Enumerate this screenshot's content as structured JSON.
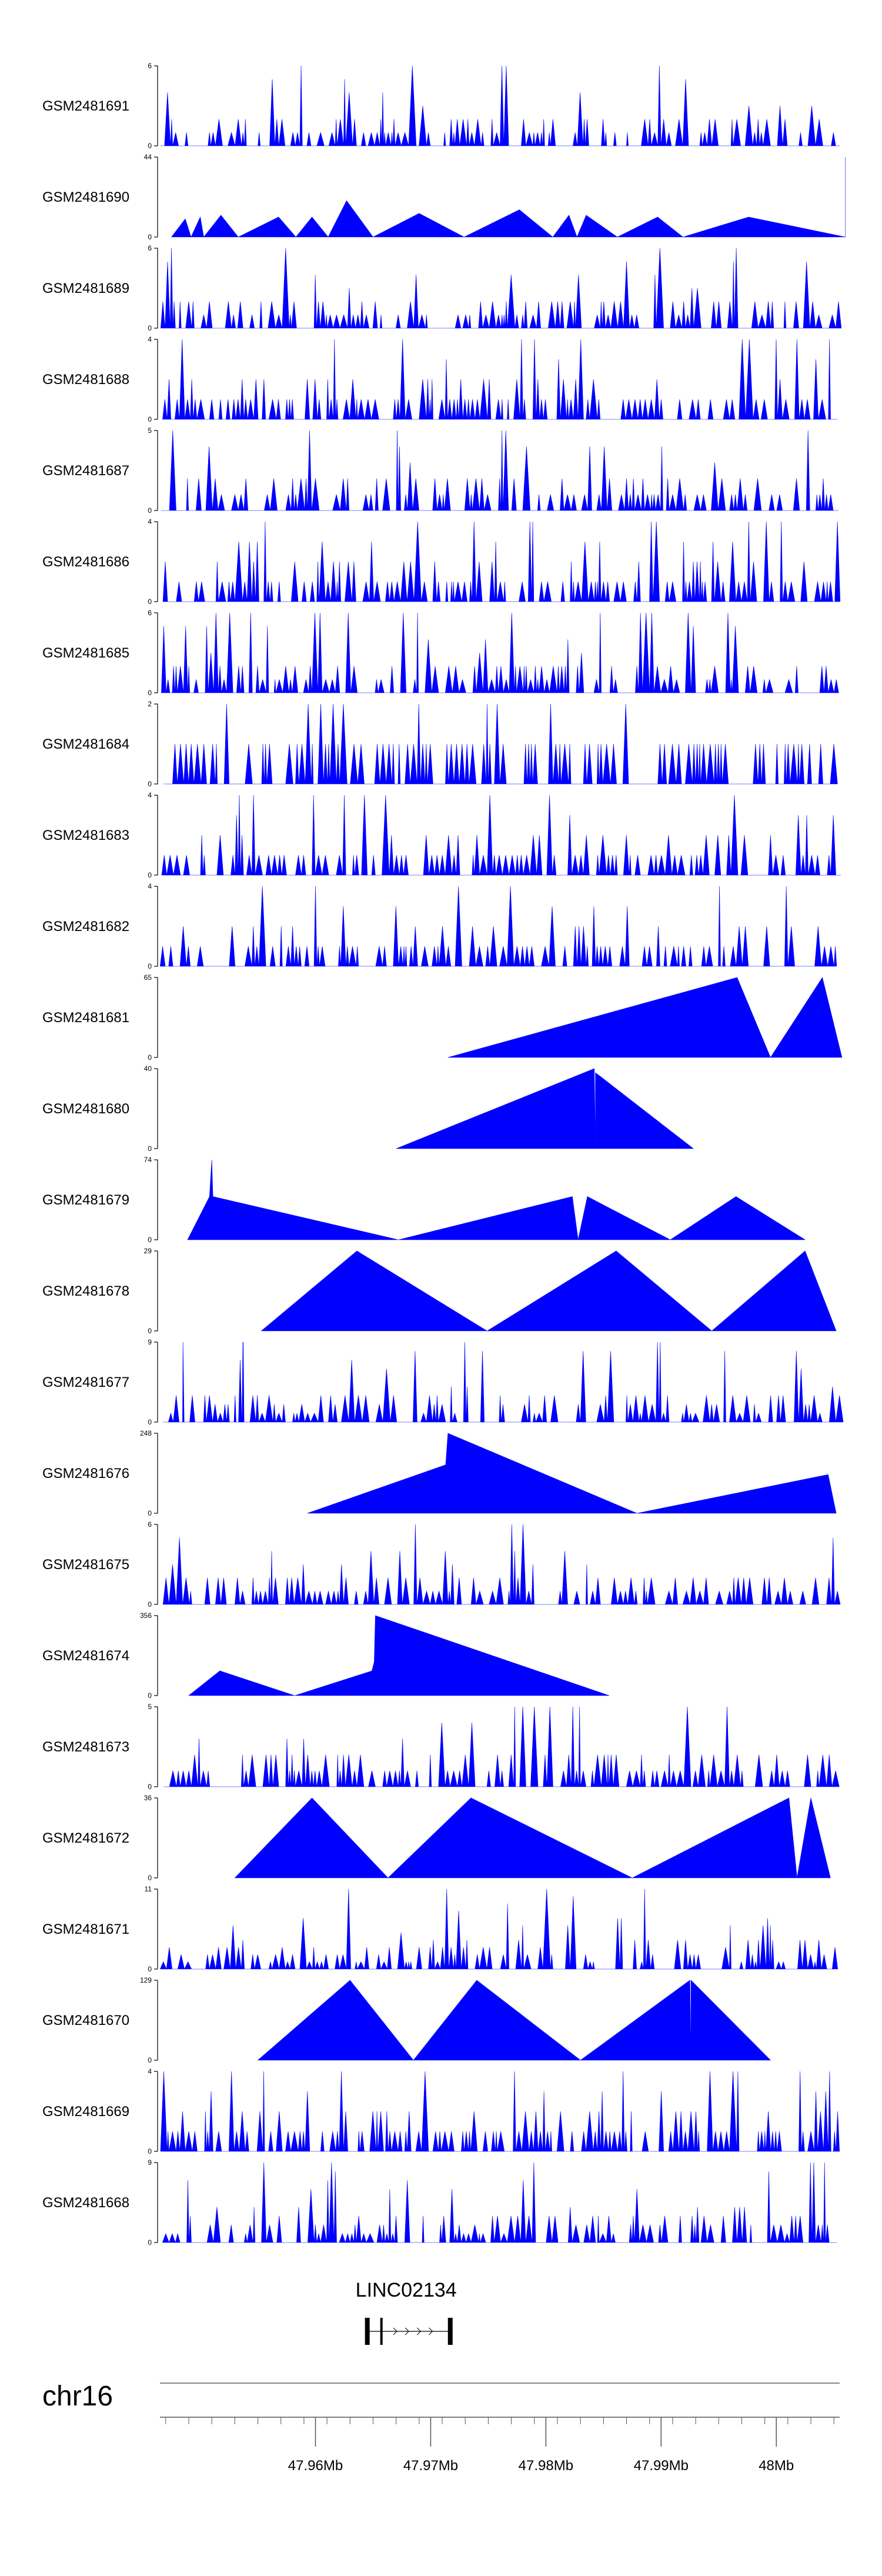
{
  "chart_data": {
    "type": "area",
    "title": "",
    "region": {
      "chromosome": "chr16",
      "start_mb": 47.9465,
      "end_mb": 48.0055
    },
    "color": "#0000ff",
    "tracks": [
      {
        "sample": "GSM2481691",
        "ymax": 6,
        "pattern": "dense",
        "seed": 91,
        "peaks": []
      },
      {
        "sample": "GSM2481690",
        "ymax": 44,
        "pattern": "sparse",
        "seed": 90,
        "peaks": [
          [
            47.9475,
            0
          ],
          [
            47.9487,
            10
          ],
          [
            47.9492,
            0
          ],
          [
            47.95,
            11
          ],
          [
            47.9503,
            0
          ],
          [
            47.9518,
            12
          ],
          [
            47.9533,
            0
          ],
          [
            47.9568,
            11
          ],
          [
            47.9583,
            0
          ],
          [
            47.9597,
            11
          ],
          [
            47.9611,
            0
          ],
          [
            47.9627,
            20
          ],
          [
            47.965,
            0
          ],
          [
            47.969,
            13
          ],
          [
            47.9729,
            0
          ],
          [
            47.9777,
            15
          ],
          [
            47.9806,
            0
          ],
          [
            47.982,
            12
          ],
          [
            47.9827,
            0
          ],
          [
            47.9835,
            12
          ],
          [
            47.9862,
            0
          ],
          [
            47.9897,
            11
          ],
          [
            47.9919,
            0
          ],
          [
            47.9976,
            11
          ],
          [
            48.006,
            0
          ],
          [
            48.006,
            44
          ]
        ]
      },
      {
        "sample": "GSM2481689",
        "ymax": 6,
        "pattern": "dense",
        "seed": 89,
        "peaks": []
      },
      {
        "sample": "GSM2481688",
        "ymax": 4,
        "pattern": "dense",
        "seed": 88,
        "peaks": []
      },
      {
        "sample": "GSM2481687",
        "ymax": 5,
        "pattern": "dense",
        "seed": 87,
        "peaks": []
      },
      {
        "sample": "GSM2481686",
        "ymax": 4,
        "pattern": "dense",
        "seed": 86,
        "peaks": []
      },
      {
        "sample": "GSM2481685",
        "ymax": 6,
        "pattern": "dense",
        "seed": 85,
        "peaks": []
      },
      {
        "sample": "GSM2481684",
        "ymax": 2,
        "pattern": "dense",
        "seed": 84,
        "peaks": []
      },
      {
        "sample": "GSM2481683",
        "ymax": 4,
        "pattern": "dense",
        "seed": 83,
        "peaks": []
      },
      {
        "sample": "GSM2481682",
        "ymax": 4,
        "pattern": "dense",
        "seed": 82,
        "peaks": []
      },
      {
        "sample": "GSM2481681",
        "ymax": 65,
        "pattern": "sparse",
        "seed": 81,
        "peaks": [
          [
            47.9715,
            0
          ],
          [
            47.9966,
            65
          ],
          [
            47.9995,
            0
          ],
          [
            48.004,
            65
          ],
          [
            48.0057,
            0
          ]
        ]
      },
      {
        "sample": "GSM2481680",
        "ymax": 40,
        "pattern": "sparse",
        "seed": 80,
        "peaks": [
          [
            47.967,
            0
          ],
          [
            47.9842,
            40
          ],
          [
            47.9843,
            0
          ],
          [
            47.9843,
            38
          ],
          [
            47.9928,
            0
          ]
        ]
      },
      {
        "sample": "GSM2481679",
        "ymax": 74,
        "pattern": "sparse",
        "seed": 79,
        "peaks": [
          [
            47.9489,
            0
          ],
          [
            47.9508,
            40
          ],
          [
            47.951,
            74
          ],
          [
            47.9511,
            40
          ],
          [
            47.9672,
            0
          ],
          [
            47.9823,
            40
          ],
          [
            47.9828,
            0
          ],
          [
            47.9836,
            40
          ],
          [
            47.9908,
            0
          ],
          [
            47.9965,
            40
          ],
          [
            48.0025,
            0
          ]
        ]
      },
      {
        "sample": "GSM2481678",
        "ymax": 29,
        "pattern": "sparse",
        "seed": 78,
        "peaks": [
          [
            47.9553,
            0
          ],
          [
            47.9636,
            29
          ],
          [
            47.9749,
            0
          ],
          [
            47.9861,
            29
          ],
          [
            47.9944,
            0
          ],
          [
            48.0025,
            29
          ],
          [
            48.0052,
            0
          ]
        ]
      },
      {
        "sample": "GSM2481677",
        "ymax": 9,
        "pattern": "dense",
        "seed": 77,
        "peaks": [
          [
            47.9485,
            9
          ],
          [
            47.9537,
            9
          ]
        ]
      },
      {
        "sample": "GSM2481676",
        "ymax": 248,
        "pattern": "sparse",
        "seed": 76,
        "peaks": [
          [
            47.9593,
            0
          ],
          [
            47.9713,
            150
          ],
          [
            47.9715,
            248
          ],
          [
            47.9879,
            0
          ],
          [
            48.0045,
            120
          ],
          [
            48.0052,
            0
          ]
        ]
      },
      {
        "sample": "GSM2481675",
        "ymax": 6,
        "pattern": "dense",
        "seed": 75,
        "peaks": []
      },
      {
        "sample": "GSM2481674",
        "ymax": 356,
        "pattern": "sparse",
        "seed": 74,
        "peaks": [
          [
            47.949,
            0
          ],
          [
            47.9517,
            110
          ],
          [
            47.9582,
            0
          ],
          [
            47.9649,
            110
          ],
          [
            47.9651,
            150
          ],
          [
            47.9652,
            356
          ],
          [
            47.9855,
            0
          ]
        ]
      },
      {
        "sample": "GSM2481673",
        "ymax": 5,
        "pattern": "dense",
        "seed": 73,
        "peaks": []
      },
      {
        "sample": "GSM2481672",
        "ymax": 36,
        "pattern": "sparse",
        "seed": 72,
        "peaks": [
          [
            47.953,
            0
          ],
          [
            47.9597,
            36
          ],
          [
            47.9663,
            0
          ],
          [
            47.9735,
            36
          ],
          [
            47.9875,
            0
          ],
          [
            48.0011,
            36
          ],
          [
            48.0018,
            0
          ],
          [
            48.003,
            36
          ],
          [
            48.0047,
            0
          ]
        ]
      },
      {
        "sample": "GSM2481671",
        "ymax": 11,
        "pattern": "dense",
        "seed": 71,
        "peaks": []
      },
      {
        "sample": "GSM2481670",
        "ymax": 129,
        "pattern": "sparse",
        "seed": 70,
        "peaks": [
          [
            47.955,
            0
          ],
          [
            47.963,
            129
          ],
          [
            47.9685,
            0
          ],
          [
            47.974,
            129
          ],
          [
            47.983,
            0
          ],
          [
            47.9925,
            129
          ],
          [
            47.9926,
            0
          ],
          [
            47.9926,
            129
          ],
          [
            47.9995,
            0
          ]
        ]
      },
      {
        "sample": "GSM2481669",
        "ymax": 4,
        "pattern": "dense",
        "seed": 69,
        "peaks": []
      },
      {
        "sample": "GSM2481668",
        "ymax": 9,
        "pattern": "dense",
        "seed": 68,
        "peaks": []
      }
    ],
    "gene": {
      "name": "LINC02134",
      "start_mb": 47.9645,
      "end_mb": 47.9717,
      "strand": "+"
    },
    "axis": {
      "chromosome_label": "chr16",
      "ticks": [
        {
          "mb": 47.96,
          "label": "47.96Mb"
        },
        {
          "mb": 47.97,
          "label": "47.97Mb"
        },
        {
          "mb": 47.98,
          "label": "47.98Mb"
        },
        {
          "mb": 47.99,
          "label": "47.99Mb"
        },
        {
          "mb": 48.0,
          "label": "48Mb"
        }
      ]
    }
  }
}
